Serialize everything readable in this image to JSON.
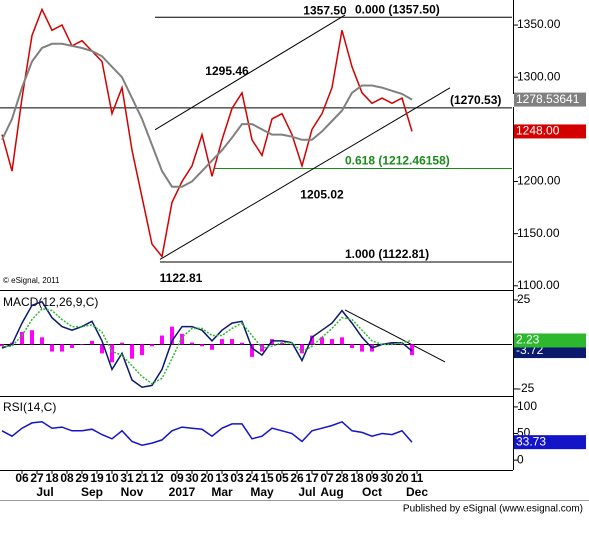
{
  "chart_data": [
    {
      "type": "line",
      "note": "© eSignal, 2011",
      "x": [
        -4,
        -2,
        0,
        2,
        4,
        6,
        8,
        10,
        12,
        14,
        16,
        18,
        20,
        22,
        24,
        26,
        28,
        30,
        32,
        34,
        36,
        38,
        40,
        42,
        44,
        46,
        48,
        50,
        52,
        54,
        56,
        58,
        60,
        62,
        64,
        66,
        68,
        70,
        72,
        74,
        76,
        78
      ],
      "xlim": [
        -4.4,
        98
      ],
      "ylim": [
        1096,
        1374
      ],
      "yticks": [
        {
          "value": 1350,
          "label": "1350.00"
        },
        {
          "value": 1300,
          "label": "1300.00"
        },
        {
          "value": 1200,
          "label": "1200.00"
        },
        {
          "value": 1150,
          "label": "1150.00"
        },
        {
          "value": 1100,
          "label": "1100.00"
        }
      ],
      "series": [
        {
          "name": "Price",
          "color": "#d40000",
          "last_label": "1248.00",
          "values": [
            1245,
            1210,
            1280,
            1340,
            1365,
            1345,
            1350,
            1330,
            1335,
            1325,
            1315,
            1265,
            1290,
            1230,
            1185,
            1140,
            1128,
            1180,
            1200,
            1215,
            1245,
            1205,
            1240,
            1270,
            1285,
            1240,
            1225,
            1260,
            1265,
            1245,
            1215,
            1250,
            1265,
            1290,
            1345,
            1310,
            1285,
            1275,
            1280,
            1275,
            1280,
            1248
          ]
        },
        {
          "name": "MA",
          "color": "#808080",
          "values": [
            1240,
            1260,
            1290,
            1315,
            1328,
            1332,
            1332,
            1330,
            1328,
            1325,
            1320,
            1310,
            1300,
            1280,
            1260,
            1235,
            1210,
            1195,
            1195,
            1200,
            1210,
            1220,
            1230,
            1242,
            1255,
            1255,
            1250,
            1245,
            1245,
            1243,
            1240,
            1240,
            1248,
            1258,
            1268,
            1285,
            1292,
            1292,
            1290,
            1287,
            1284,
            1278.53641
          ]
        }
      ],
      "levels": [
        {
          "value": 1357.5,
          "label": "0.000 (1357.50)",
          "color": "#000000"
        },
        {
          "value": 1270.53,
          "label": "(1270.53)",
          "color": "#000000"
        },
        {
          "value": 1212.46158,
          "label": "0.618 (1212.46158)",
          "color": "#1a8a1a"
        },
        {
          "value": 1122.81,
          "label": "1.000 (1122.81)",
          "color": "#000000"
        }
      ],
      "annotations": [
        {
          "value": 1357.5,
          "label": "1357.50"
        },
        {
          "value": 1295.46,
          "label": "1295.46"
        },
        {
          "value": 1205.02,
          "label": "1205.02"
        },
        {
          "value": 1122.81,
          "label": "1122.81"
        }
      ],
      "trendlines": [
        {
          "x": [
            26.6,
            64.6
          ],
          "y": [
            1249.6,
            1359.6
          ]
        },
        {
          "x": [
            27.6,
            85.6
          ],
          "y": [
            1125.3,
            1289.8
          ]
        }
      ]
    },
    {
      "type": "line",
      "title": "MACD(12,26,9,C)",
      "x": [
        -4,
        -2,
        0,
        2,
        4,
        6,
        8,
        10,
        12,
        14,
        16,
        18,
        20,
        22,
        24,
        26,
        28,
        30,
        32,
        34,
        36,
        38,
        40,
        42,
        44,
        46,
        48,
        50,
        52,
        54,
        56,
        58,
        60,
        62,
        64,
        66,
        68,
        70,
        72,
        74,
        76,
        78
      ],
      "xlim": [
        -4.4,
        98
      ],
      "ylim": [
        -28.4,
        28.9
      ],
      "yticks": [
        25,
        -25
      ],
      "series": [
        {
          "name": "Histogram",
          "type": "bar",
          "color": "#ff00ff",
          "values": [
            -1,
            1,
            7,
            8,
            4,
            -4,
            -4,
            -2,
            0,
            2,
            -5,
            -10,
            1,
            -8,
            -6,
            -1,
            5,
            10,
            6,
            1,
            -1,
            -3,
            3,
            3,
            1,
            -7,
            -4,
            3,
            1,
            0,
            -5,
            5,
            4,
            3,
            4,
            -2,
            -4,
            -4,
            0,
            1,
            0,
            -6
          ]
        },
        {
          "name": "MACD",
          "color": "#0a1a6e",
          "values": [
            -2,
            0,
            12,
            22,
            24,
            15,
            10,
            8,
            10,
            13,
            2,
            -14,
            -5,
            -20,
            -24,
            -23,
            -14,
            2,
            10,
            10,
            8,
            2,
            8,
            12,
            13,
            -2,
            -6,
            2,
            2,
            1,
            -9,
            4,
            8,
            12,
            19,
            12,
            4,
            -2,
            0,
            1,
            1,
            -3.72
          ]
        },
        {
          "name": "Signal",
          "color": "#2eb82e",
          "dash": true,
          "values": [
            -1,
            -1,
            5,
            14,
            20,
            19,
            14,
            10,
            10,
            11,
            7,
            -4,
            -6,
            -12,
            -18,
            -22,
            -19,
            -8,
            4,
            9,
            9,
            5,
            5,
            9,
            12,
            5,
            -2,
            -1,
            1,
            1,
            -4,
            -1,
            4,
            9,
            15,
            14,
            8,
            2,
            0,
            0,
            1,
            2.23
          ]
        }
      ],
      "trendlines": [
        {
          "x": [
            64.6,
            84.6
          ],
          "y": [
            19.4,
            -9.8
          ]
        }
      ]
    },
    {
      "type": "line",
      "title": "RSI(14,C)",
      "x": [
        -4,
        -2,
        0,
        2,
        4,
        6,
        8,
        10,
        12,
        14,
        16,
        18,
        20,
        22,
        24,
        26,
        28,
        30,
        32,
        34,
        36,
        38,
        40,
        42,
        44,
        46,
        48,
        50,
        52,
        54,
        56,
        58,
        60,
        62,
        64,
        66,
        68,
        70,
        72,
        74,
        76,
        78
      ],
      "xlim": [
        -4.4,
        98
      ],
      "ylim": [
        -14.8,
        116.7
      ],
      "yticks": [
        100,
        50,
        0
      ],
      "series": [
        {
          "name": "RSI",
          "color": "#1414c8",
          "values": [
            55,
            45,
            60,
            70,
            72,
            60,
            62,
            55,
            55,
            58,
            48,
            40,
            55,
            35,
            28,
            32,
            38,
            55,
            62,
            60,
            58,
            45,
            60,
            68,
            68,
            40,
            45,
            60,
            55,
            50,
            35,
            55,
            60,
            65,
            72,
            55,
            52,
            45,
            50,
            48,
            55,
            33.73
          ]
        }
      ],
      "xticks": [
        {
          "value": 0,
          "label": "06"
        },
        {
          "value": 3,
          "label": "27"
        },
        {
          "value": 6,
          "label": "18"
        },
        {
          "value": 9,
          "label": "08"
        },
        {
          "value": 12,
          "label": "29"
        },
        {
          "value": 15,
          "label": "19"
        },
        {
          "value": 18,
          "label": "10"
        },
        {
          "value": 21,
          "label": "31"
        },
        {
          "value": 24,
          "label": "21"
        },
        {
          "value": 27,
          "label": "12"
        },
        {
          "value": 31,
          "label": "09"
        },
        {
          "value": 34,
          "label": "30"
        },
        {
          "value": 37,
          "label": "20"
        },
        {
          "value": 40,
          "label": "13"
        },
        {
          "value": 43,
          "label": "03"
        },
        {
          "value": 46,
          "label": "24"
        },
        {
          "value": 49,
          "label": "15"
        },
        {
          "value": 52,
          "label": "05"
        },
        {
          "value": 55,
          "label": "26"
        },
        {
          "value": 58,
          "label": "17"
        },
        {
          "value": 61,
          "label": "07"
        },
        {
          "value": 64,
          "label": "28"
        },
        {
          "value": 67,
          "label": "18"
        },
        {
          "value": 70,
          "label": "09"
        },
        {
          "value": 73,
          "label": "30"
        },
        {
          "value": 76,
          "label": "20"
        },
        {
          "value": 79,
          "label": "11"
        }
      ],
      "xticks2": [
        {
          "value": 4.6,
          "label": "Jul"
        },
        {
          "value": 14,
          "label": "Sep"
        },
        {
          "value": 22,
          "label": "Nov"
        },
        {
          "value": 32,
          "label": "2017"
        },
        {
          "value": 40,
          "label": "Mar"
        },
        {
          "value": 48,
          "label": "May"
        },
        {
          "value": 57,
          "label": "Jul"
        },
        {
          "value": 62,
          "label": "Aug"
        },
        {
          "value": 70,
          "label": "Oct"
        },
        {
          "value": 79,
          "label": "Dec"
        }
      ]
    }
  ],
  "footer": "Published by eSignal (www.esignal.com)"
}
